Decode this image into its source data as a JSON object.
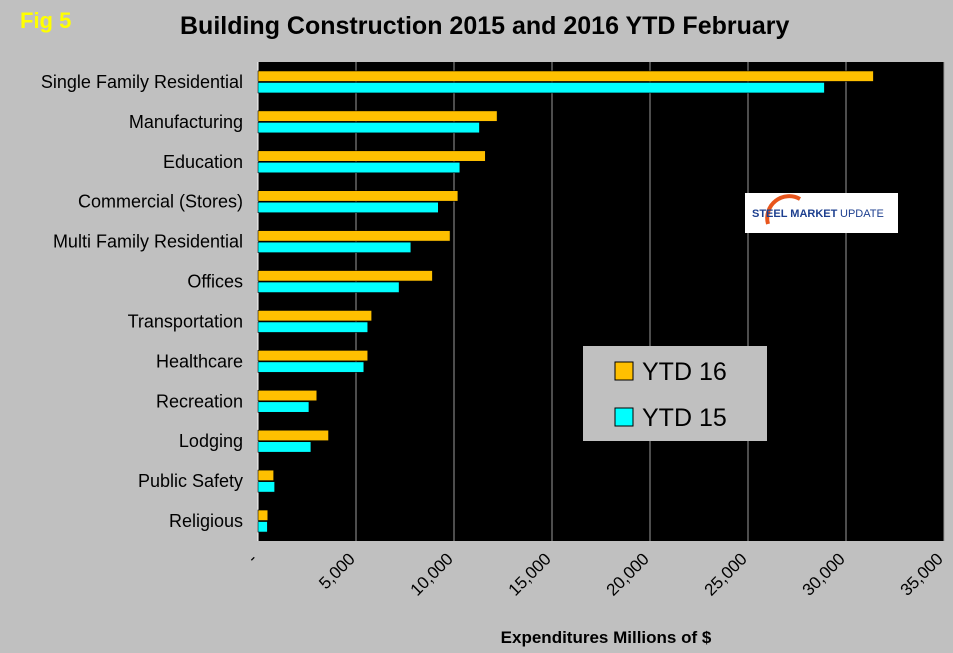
{
  "figure": {
    "label": "Fig 5"
  },
  "logo": {
    "word1": "STEEL MARKET",
    "word2": "UPDATE"
  },
  "chart_data": {
    "type": "bar",
    "orientation": "horizontal",
    "title": "Building Construction 2015 and 2016  YTD February",
    "xlabel": "Expenditures Millions of $",
    "ylabel": "",
    "xlim": [
      0,
      35000
    ],
    "xticks": [
      0,
      5000,
      10000,
      15000,
      20000,
      25000,
      30000,
      35000
    ],
    "xtick_labels": [
      "-",
      "5,000",
      "10,000",
      "15,000",
      "20,000",
      "25,000",
      "30,000",
      "35,000"
    ],
    "grid": true,
    "legend_position": "center-right",
    "categories": [
      "Single Family Residential",
      "Manufacturing",
      "Education",
      "Commercial (Stores)",
      "Multi Family Residential",
      "Offices",
      "Transportation",
      "Healthcare",
      "Recreation",
      "Lodging",
      "Public Safety",
      "Religious"
    ],
    "series": [
      {
        "name": "YTD 16",
        "color": "#ffc000",
        "values": [
          31400,
          12200,
          11600,
          10200,
          9800,
          8900,
          5800,
          5600,
          3000,
          3600,
          800,
          500
        ]
      },
      {
        "name": "YTD 15",
        "color": "#00ffff",
        "values": [
          28900,
          11300,
          10300,
          9200,
          7800,
          7200,
          5600,
          5400,
          2600,
          2700,
          850,
          480
        ]
      }
    ]
  }
}
